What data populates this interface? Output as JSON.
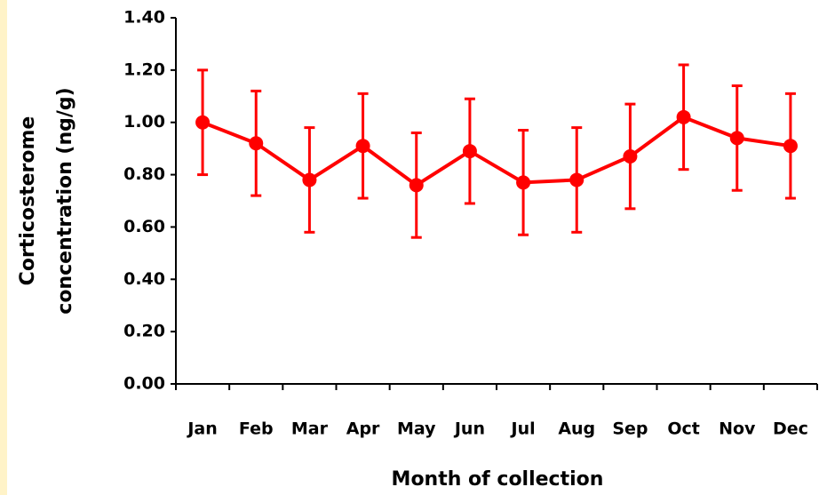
{
  "chart_data": {
    "type": "line",
    "categories": [
      "Jan",
      "Feb",
      "Mar",
      "Apr",
      "May",
      "Jun",
      "Jul",
      "Aug",
      "Sep",
      "Oct",
      "Nov",
      "Dec"
    ],
    "values": [
      1.0,
      0.92,
      0.78,
      0.91,
      0.76,
      0.89,
      0.77,
      0.78,
      0.87,
      1.02,
      0.94,
      0.91
    ],
    "errors": [
      0.2,
      0.2,
      0.2,
      0.2,
      0.2,
      0.2,
      0.2,
      0.2,
      0.2,
      0.2,
      0.2,
      0.2
    ],
    "color": "#ff0000",
    "ylim": [
      0,
      1.4
    ],
    "yticks": [
      {
        "value": 0,
        "label": "0.00"
      },
      {
        "value": 0.2,
        "label": "0.20"
      },
      {
        "value": 0.4,
        "label": "0.40"
      },
      {
        "value": 0.6,
        "label": "0.60"
      },
      {
        "value": 0.8,
        "label": "0.80"
      },
      {
        "value": 1.0,
        "label": "1.00"
      },
      {
        "value": 1.2,
        "label": "1.20"
      },
      {
        "value": 1.4,
        "label": "1.40"
      }
    ],
    "y_label": [
      "Corticosterome",
      "concentration (ng/g)"
    ],
    "x_label": "Month of collection"
  }
}
